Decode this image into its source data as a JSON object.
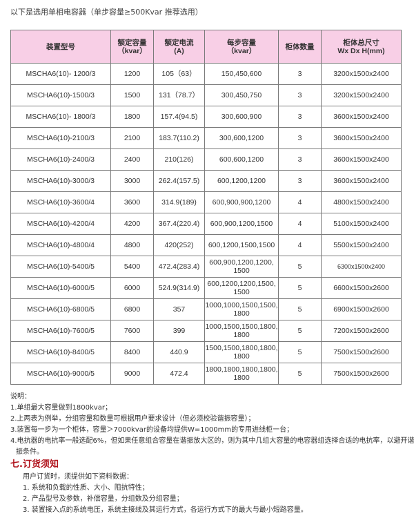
{
  "intro": "以下是选用单相电容器（单步容量≥500Kvar 推荐选用）",
  "table": {
    "header_color": "#f8cfe6",
    "headers": [
      {
        "l1": "装置型号",
        "l2": ""
      },
      {
        "l1": "额定容量",
        "l2": "（kvar）"
      },
      {
        "l1": "额定电流",
        "l2": "(A)"
      },
      {
        "l1": "每步容量",
        "l2": "（kvar）"
      },
      {
        "l1": "柜体数量",
        "l2": ""
      },
      {
        "l1": "柜体总尺寸",
        "l2": "Wx Dx H(mm)"
      }
    ],
    "rows": [
      {
        "model": "MSCHA6(10)- 1200/3",
        "capacity": "1200",
        "current": "105（63）",
        "step_l1": "150,450,600",
        "step_l2": "",
        "count": "3",
        "size": "3200x1500x2400"
      },
      {
        "model": "MSCHA6(10)-1500/3",
        "capacity": "1500",
        "current": "131（78.7）",
        "step_l1": "300,450,750",
        "step_l2": "",
        "count": "3",
        "size": "3200x1500x2400"
      },
      {
        "model": "MSCHA6(10)- 1800/3",
        "capacity": "1800",
        "current": "157.4(94.5)",
        "step_l1": "300,600,900",
        "step_l2": "",
        "count": "3",
        "size": "3600x1500x2400"
      },
      {
        "model": "MSCHA6(10)-2100/3",
        "capacity": "2100",
        "current": "183.7(110.2)",
        "step_l1": "300,600,1200",
        "step_l2": "",
        "count": "3",
        "size": "3600x1500x2400"
      },
      {
        "model": "MSCHA6(10)-2400/3",
        "capacity": "2400",
        "current": "210(126)",
        "step_l1": "600,600,1200",
        "step_l2": "",
        "count": "3",
        "size": "3600x1500x2400"
      },
      {
        "model": "MSCHA6(10)-3000/3",
        "capacity": "3000",
        "current": "262.4(157.5)",
        "step_l1": "600,1200,1200",
        "step_l2": "",
        "count": "3",
        "size": "3600x1500x2400"
      },
      {
        "model": "MSCHA6(10)-3600/4",
        "capacity": "3600",
        "current": "314.9(189)",
        "step_l1": "600,900,900,1200",
        "step_l2": "",
        "count": "4",
        "size": "4800x1500x2400"
      },
      {
        "model": "MSCHA6(10)-4200/4",
        "capacity": "4200",
        "current": "367.4(220.4)",
        "step_l1": "600,900,1200,1500",
        "step_l2": "",
        "count": "4",
        "size": "5100x1500x2400"
      },
      {
        "model": "MSCHA6(10)-4800/4",
        "capacity": "4800",
        "current": "420(252)",
        "step_l1": "600,1200,1500,1500",
        "step_l2": "",
        "count": "4",
        "size": "5500x1500x2400"
      },
      {
        "model": "MSCHA6(10)-5400/5",
        "capacity": "5400",
        "current": "472.4(283.4)",
        "step_l1": "600,900,1200,1200,",
        "step_l2": "1500",
        "count": "5",
        "size": "6300x1500x2400"
      },
      {
        "model": "MSCHA6(10)-6000/5",
        "capacity": "6000",
        "current": "524.9(314.9)",
        "step_l1": "600,1200,1200,1500,",
        "step_l2": "1500",
        "count": "5",
        "size": "6600x1500x2600"
      },
      {
        "model": "MSCHA6(10)-6800/5",
        "capacity": "6800",
        "current": "357",
        "step_l1": "1000,1000,1500,1500,",
        "step_l2": "1800",
        "count": "5",
        "size": "6900x1500x2600"
      },
      {
        "model": "MSCHA6(10)-7600/5",
        "capacity": "7600",
        "current": "399",
        "step_l1": "1000,1500,1500,1800,",
        "step_l2": "1800",
        "count": "5",
        "size": "7200x1500x2600"
      },
      {
        "model": "MSCHA6(10)-8400/5",
        "capacity": "8400",
        "current": "440.9",
        "step_l1": "1500,1500,1800,1800,",
        "step_l2": "1800",
        "count": "5",
        "size": "7500x1500x2600"
      },
      {
        "model": "MSCHA6(10)-9000/5",
        "capacity": "9000",
        "current": "472.4",
        "step_l1": "1800,1800,1800,1800,",
        "step_l2": "1800",
        "count": "5",
        "size": "7500x1500x2600"
      }
    ]
  },
  "notes": {
    "title": "说明：",
    "items": [
      "1.单组最大容量做到1800kvar；",
      "2.上两表为例举，分组容量和数量可根据用户要求设计（但必须校验谐振容量）；",
      "3.装置每一步为一个柜体，容量＞7000kvar的设备均提供W=1000mm的专用进线柜一台；",
      "4.电抗器的电抗率一般选配6%，但如果任意组合容量在谐振放大区的，则为其中几组大容量的电容器组选择合适的电抗率，以避开谐",
      "振条件。"
    ]
  },
  "order": {
    "heading": "七.订货须知",
    "heading_color": "#b0121b",
    "intro": "用户订货时，须提供如下资料数据：",
    "items": [
      "1.  系统和负载的性质、大小、阻抗特性；",
      "2.  产品型号及参数，补偿容量，分组数及分组容量；",
      "3.  装置接入点的系统电压，系统主接线及其运行方式，各运行方式下的最大与最小短路容量。"
    ]
  }
}
